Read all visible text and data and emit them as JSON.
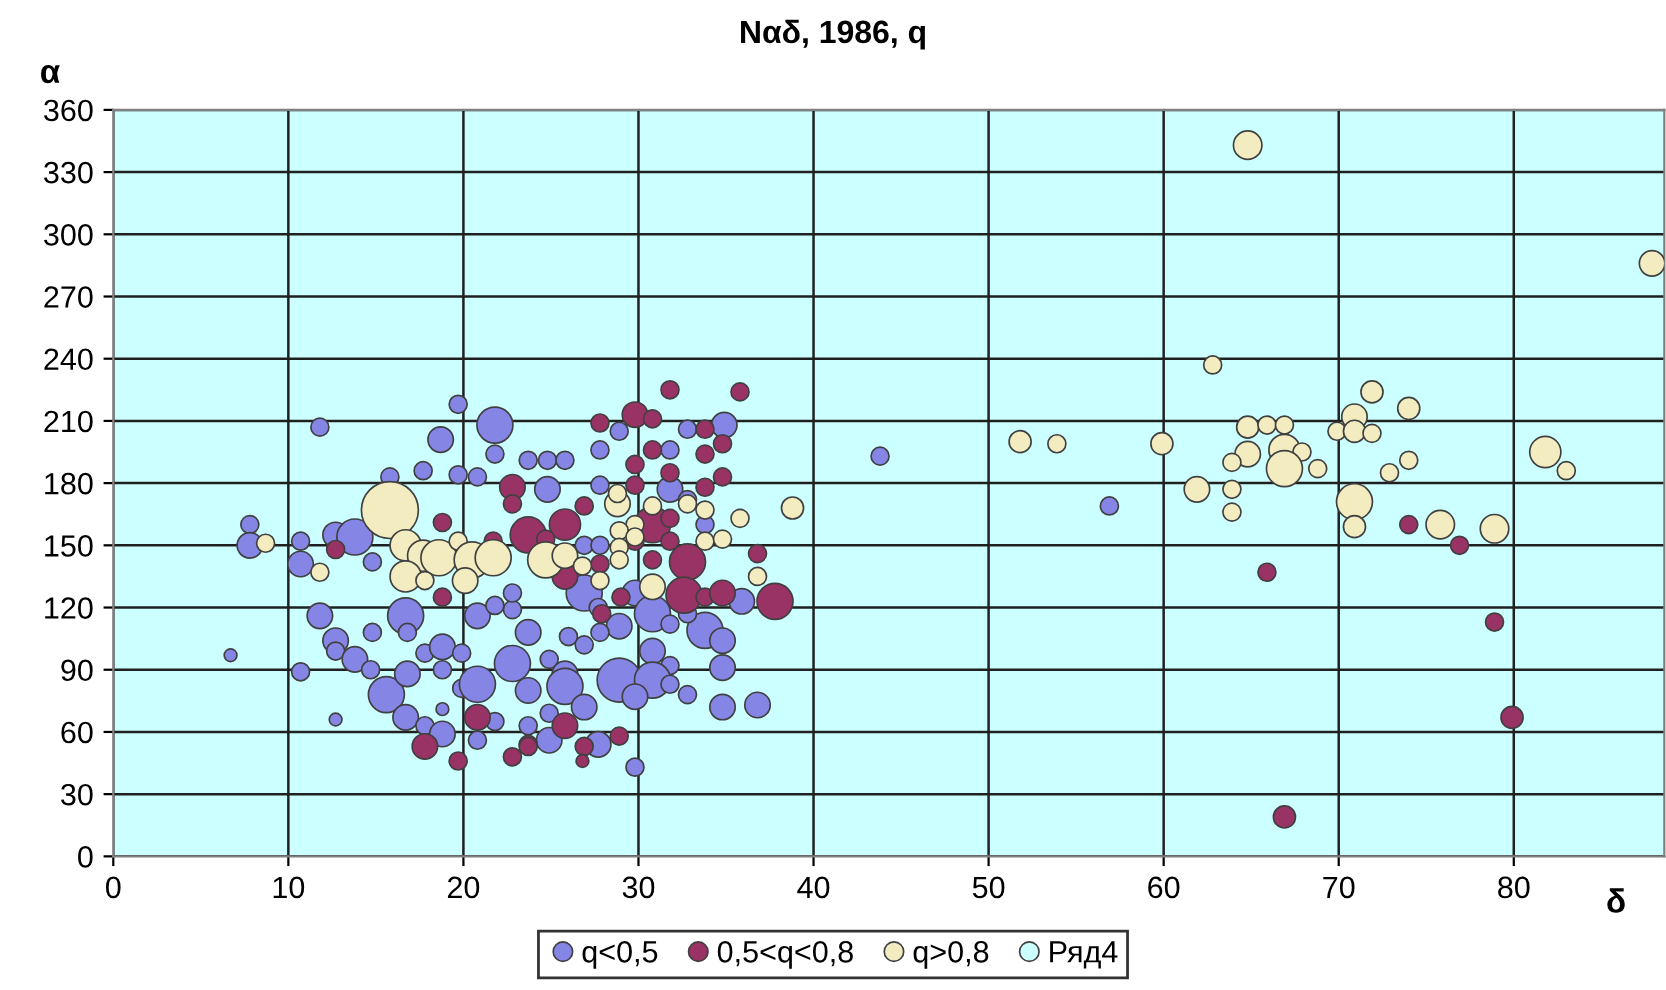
{
  "chart_data": {
    "type": "bubble",
    "title": "Nαδ, 1986, q",
    "xlabel": "δ",
    "ylabel": "α",
    "xlim": [
      0,
      88.6
    ],
    "xticks": [
      0,
      10,
      20,
      30,
      40,
      50,
      60,
      70,
      80
    ],
    "ylim": [
      0,
      360
    ],
    "yticks": [
      0,
      30,
      60,
      90,
      120,
      150,
      180,
      210,
      240,
      270,
      300,
      330,
      360
    ],
    "grid": true,
    "legend": "bottom",
    "series": [
      {
        "name": "q<0,5",
        "color": "#8585e6",
        "x": [
          43.8,
          56.9,
          11.8,
          19.7,
          21.8,
          18.7,
          21.8,
          15.8,
          17.7,
          19.7,
          20.8,
          7.8,
          7.8,
          10.7,
          12.7,
          13.8,
          10.7,
          14.8,
          11.8,
          12.7,
          12.7,
          13.8,
          14.7,
          16.7,
          14.8,
          16.8,
          10.7,
          15.6,
          16.8,
          17.8,
          18.8,
          20.8,
          21.8,
          19.9,
          18.8,
          19.9,
          20.8,
          22.8,
          23.7,
          16.7,
          17.8,
          18.8,
          18.8,
          12.7,
          20.8,
          21.8,
          22.8,
          22.8,
          23.7,
          6.7,
          34.9,
          28.9,
          27.8,
          32.8,
          31.8,
          23.7,
          24.8,
          25.8,
          24.8,
          27.8,
          31.8,
          32.8,
          33.8,
          26.9,
          27.8,
          26.9,
          29.8,
          27.7,
          30.8,
          28.9,
          31.8,
          33.8,
          32.8,
          35.9,
          34.8,
          26.0,
          26.9,
          27.8,
          23.7,
          24.9,
          25.8,
          30.8,
          31.8,
          28.9,
          30.8,
          31.8,
          32.8,
          29.8,
          34.8,
          34.8,
          36.8,
          25.8,
          26.9,
          24.9,
          27.7,
          29.8,
          24.9
        ],
        "values": [
          193,
          169,
          207,
          218,
          208,
          201,
          194,
          183,
          186,
          184,
          183,
          160,
          150,
          152,
          155,
          154,
          141,
          142,
          116,
          104,
          99,
          95,
          90,
          116,
          108,
          108,
          89,
          78,
          88,
          98,
          101,
          116,
          121,
          98,
          90,
          81,
          83,
          93,
          80,
          67,
          63,
          59,
          71,
          66,
          56,
          65,
          119,
          127,
          63,
          97,
          208,
          205,
          196,
          206,
          196,
          191,
          191,
          191,
          177,
          179,
          177,
          172,
          160,
          150,
          150,
          127,
          127,
          120,
          117,
          111,
          112,
          109,
          117,
          123,
          104,
          106,
          102,
          108,
          108,
          95,
          88,
          99,
          92,
          85,
          85,
          83,
          78,
          77,
          91,
          72,
          73,
          82,
          72,
          69,
          54,
          43,
          56
        ],
        "sizes": [
          0.1,
          0.1,
          0.1,
          0.1,
          0.4,
          0.2,
          0.1,
          0.1,
          0.1,
          0.1,
          0.1,
          0.1,
          0.2,
          0.1,
          0.2,
          0.4,
          0.2,
          0.1,
          0.2,
          0.2,
          0.1,
          0.2,
          0.1,
          0.4,
          0.1,
          0.1,
          0.1,
          0.4,
          0.2,
          0.1,
          0.2,
          0.2,
          0.1,
          0.1,
          0.1,
          0.1,
          0.4,
          0.4,
          0.2,
          0.2,
          0.1,
          0.2,
          0.05,
          0.05,
          0.1,
          0.1,
          0.1,
          0.1,
          0.1,
          0.05,
          0.2,
          0.1,
          0.1,
          0.1,
          0.1,
          0.1,
          0.1,
          0.1,
          0.2,
          0.1,
          0.2,
          0.1,
          0.1,
          0.1,
          0.1,
          0.4,
          0.2,
          0.1,
          0.4,
          0.2,
          0.1,
          0.4,
          0.1,
          0.2,
          0.2,
          0.1,
          0.1,
          0.1,
          0.2,
          0.1,
          0.2,
          0.2,
          0.1,
          0.6,
          0.4,
          0.1,
          0.1,
          0.2,
          0.2,
          0.2,
          0.2,
          0.4,
          0.2,
          0.1,
          0.2,
          0.1,
          0.2
        ]
      },
      {
        "name": "0,5<q<0,8",
        "color": "#993366",
        "x": [
          74.0,
          76.9,
          65.9,
          78.9,
          79.9,
          66.9,
          12.7,
          18.8,
          22.8,
          22.8,
          18.8,
          20.8,
          17.8,
          19.7,
          22.8,
          23.7,
          21.7,
          31.8,
          35.8,
          27.8,
          29.8,
          30.8,
          33.8,
          34.8,
          33.8,
          30.8,
          29.8,
          31.8,
          34.8,
          33.8,
          29.8,
          26.9,
          25.8,
          23.7,
          30.8,
          31.8,
          29.8,
          31.8,
          30.8,
          27.8,
          24.7,
          25.8,
          32.8,
          36.8,
          32.6,
          33.8,
          34.8,
          37.8,
          29.0,
          27.9,
          25.8,
          26.9,
          28.9,
          23.7,
          26.8
        ],
        "values": [
          160,
          150,
          137,
          113,
          67,
          19,
          148,
          161,
          178,
          170,
          125,
          67,
          53,
          46,
          48,
          54,
          152,
          225,
          224,
          209,
          213,
          211,
          206,
          199,
          194,
          196,
          189,
          185,
          183,
          178,
          179,
          169,
          160,
          155,
          160,
          163,
          152,
          152,
          143,
          141,
          153,
          135,
          142,
          146,
          126,
          125,
          127,
          123,
          125,
          117,
          63,
          53,
          58,
          53,
          46
        ],
        "sizes": [
          0.1,
          0.1,
          0.1,
          0.1,
          0.15,
          0.15,
          0.1,
          0.1,
          0.2,
          0.1,
          0.1,
          0.2,
          0.2,
          0.1,
          0.1,
          0.1,
          0.1,
          0.1,
          0.1,
          0.1,
          0.2,
          0.1,
          0.1,
          0.1,
          0.1,
          0.1,
          0.1,
          0.1,
          0.1,
          0.1,
          0.1,
          0.1,
          0.3,
          0.4,
          0.4,
          0.1,
          0.1,
          0.1,
          0.1,
          0.1,
          0.1,
          0.2,
          0.4,
          0.1,
          0.4,
          0.1,
          0.2,
          0.4,
          0.1,
          0.1,
          0.2,
          0.1,
          0.1,
          0.1,
          0.05
        ]
      },
      {
        "name": "q>0,8",
        "color": "#f2ecc0",
        "x": [
          64.8,
          87.9,
          62.8,
          71.9,
          74.0,
          64.8,
          65.9,
          66.9,
          70.9,
          69.9,
          70.9,
          71.9,
          51.8,
          53.9,
          59.9,
          64.8,
          66.9,
          67.9,
          63.9,
          66.9,
          68.8,
          74.0,
          72.9,
          81.8,
          83.0,
          61.9,
          63.9,
          70.9,
          63.9,
          70.9,
          75.8,
          78.9,
          15.8,
          8.7,
          11.8,
          16.7,
          17.7,
          16.7,
          18.6,
          19.7,
          20.5,
          21.7,
          17.8,
          20.1,
          28.8,
          28.8,
          30.8,
          32.8,
          33.8,
          35.8,
          38.8,
          29.8,
          28.9,
          29.8,
          33.8,
          34.8,
          28.9,
          28.9,
          24.7,
          25.8,
          26.8,
          27.8,
          30.8,
          36.8
        ],
        "values": [
          343,
          286,
          237,
          224,
          216,
          207,
          208,
          208,
          212,
          205,
          205,
          204,
          200,
          199,
          199,
          194,
          196,
          195,
          190,
          187,
          187,
          191,
          185,
          195,
          186,
          177,
          177,
          171,
          166,
          159,
          160,
          158,
          167,
          151,
          137,
          150,
          145,
          135,
          144,
          152,
          143,
          144,
          133,
          133,
          170,
          175,
          169,
          170,
          167,
          163,
          168,
          160,
          157,
          154,
          152,
          153,
          149,
          143,
          143,
          145,
          140,
          133,
          130,
          135
        ],
        "sizes": [
          0.25,
          0.2,
          0.1,
          0.15,
          0.15,
          0.15,
          0.1,
          0.1,
          0.2,
          0.1,
          0.15,
          0.1,
          0.15,
          0.1,
          0.15,
          0.2,
          0.3,
          0.1,
          0.1,
          0.4,
          0.1,
          0.1,
          0.1,
          0.3,
          0.1,
          0.2,
          0.1,
          0.4,
          0.1,
          0.15,
          0.25,
          0.25,
          1,
          0.1,
          0.1,
          0.3,
          0.3,
          0.3,
          0.4,
          0.1,
          0.4,
          0.4,
          0.1,
          0.2,
          0.2,
          0.1,
          0.1,
          0.1,
          0.1,
          0.1,
          0.15,
          0.1,
          0.1,
          0.1,
          0.1,
          0.1,
          0.1,
          0.1,
          0.4,
          0.2,
          0.1,
          0.1,
          0.2,
          0.1
        ]
      },
      {
        "name": "Ряд4",
        "color": "#ccffff"
      }
    ]
  }
}
